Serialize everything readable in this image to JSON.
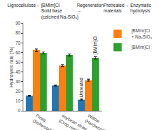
{
  "chart_data": {
    "type": "bar",
    "categories": [
      "Picea\n(Softwood)",
      "soybean straw\n(Crop residue)",
      "Willow\n(Hardwood)"
    ],
    "series": [
      {
        "values": [
          15.5,
          26.0,
          11.5
        ],
        "errors": [
          0.5,
          0.5,
          0.5
        ]
      },
      {
        "name": "[BMIm]Cl\n+ Na₂SiO₃",
        "values": [
          62.5,
          46.5,
          31.5
        ],
        "errors": [
          1.2,
          1.0,
          1.0
        ]
      },
      {
        "name": "[BMIm]Cl",
        "values": [
          59.5,
          57.5,
          54.5
        ],
        "errors": [
          1.0,
          1.0,
          1.2
        ]
      }
    ],
    "ylabel": "Hydrolysis rate (%)",
    "ylim": [
      0,
      90
    ],
    "yticks": [
      0,
      10,
      20,
      30,
      40,
      50,
      60,
      70,
      80,
      90
    ],
    "grid": false,
    "legend": "right",
    "annotations": [
      {
        "text": "Lignocellulose"
      },
      {
        "text": "→"
      },
      {
        "text": "[BMIm]Cl\nSolid base\n(calcined Na₂SiO₃)"
      },
      {
        "text": "Regeneration\n→"
      },
      {
        "text": "Pretreated\nmaterials"
      },
      {
        "text": "→"
      },
      {
        "text": "Enzymatic\nhydrolysis"
      },
      {
        "text": "Untreated",
        "category": "Willow\n(Hardwood)",
        "series": 0
      },
      {
        "text": "[BMIm]Cl",
        "category": "Willow\n(Hardwood)",
        "series": 2
      }
    ]
  }
}
